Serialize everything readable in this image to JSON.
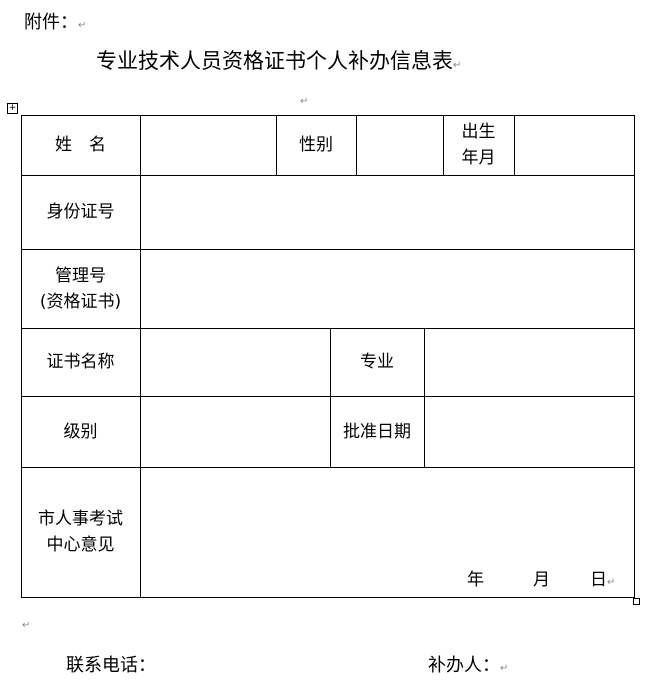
{
  "attachment_label": "附件：",
  "title": "专业技术人员资格证书个人补办信息表",
  "table": {
    "name_label": "姓　名",
    "gender_label": "性别",
    "birth_label_1": "出生",
    "birth_label_2": "年月",
    "id_label": "身份证号",
    "mgmt_label_1": "管理号",
    "mgmt_label_2": "(资格证书)",
    "cert_name_label": "证书名称",
    "major_label": "专业",
    "level_label": "级别",
    "approval_date_label": "批准日期",
    "opinion_label_1": "市人事考试",
    "opinion_label_2": "中心意见",
    "date_year": "年",
    "date_month": "月",
    "date_day": "日"
  },
  "footer": {
    "phone_label": "联系电话：",
    "applicant_label": "补办人："
  },
  "paragraph_mark": "↵"
}
